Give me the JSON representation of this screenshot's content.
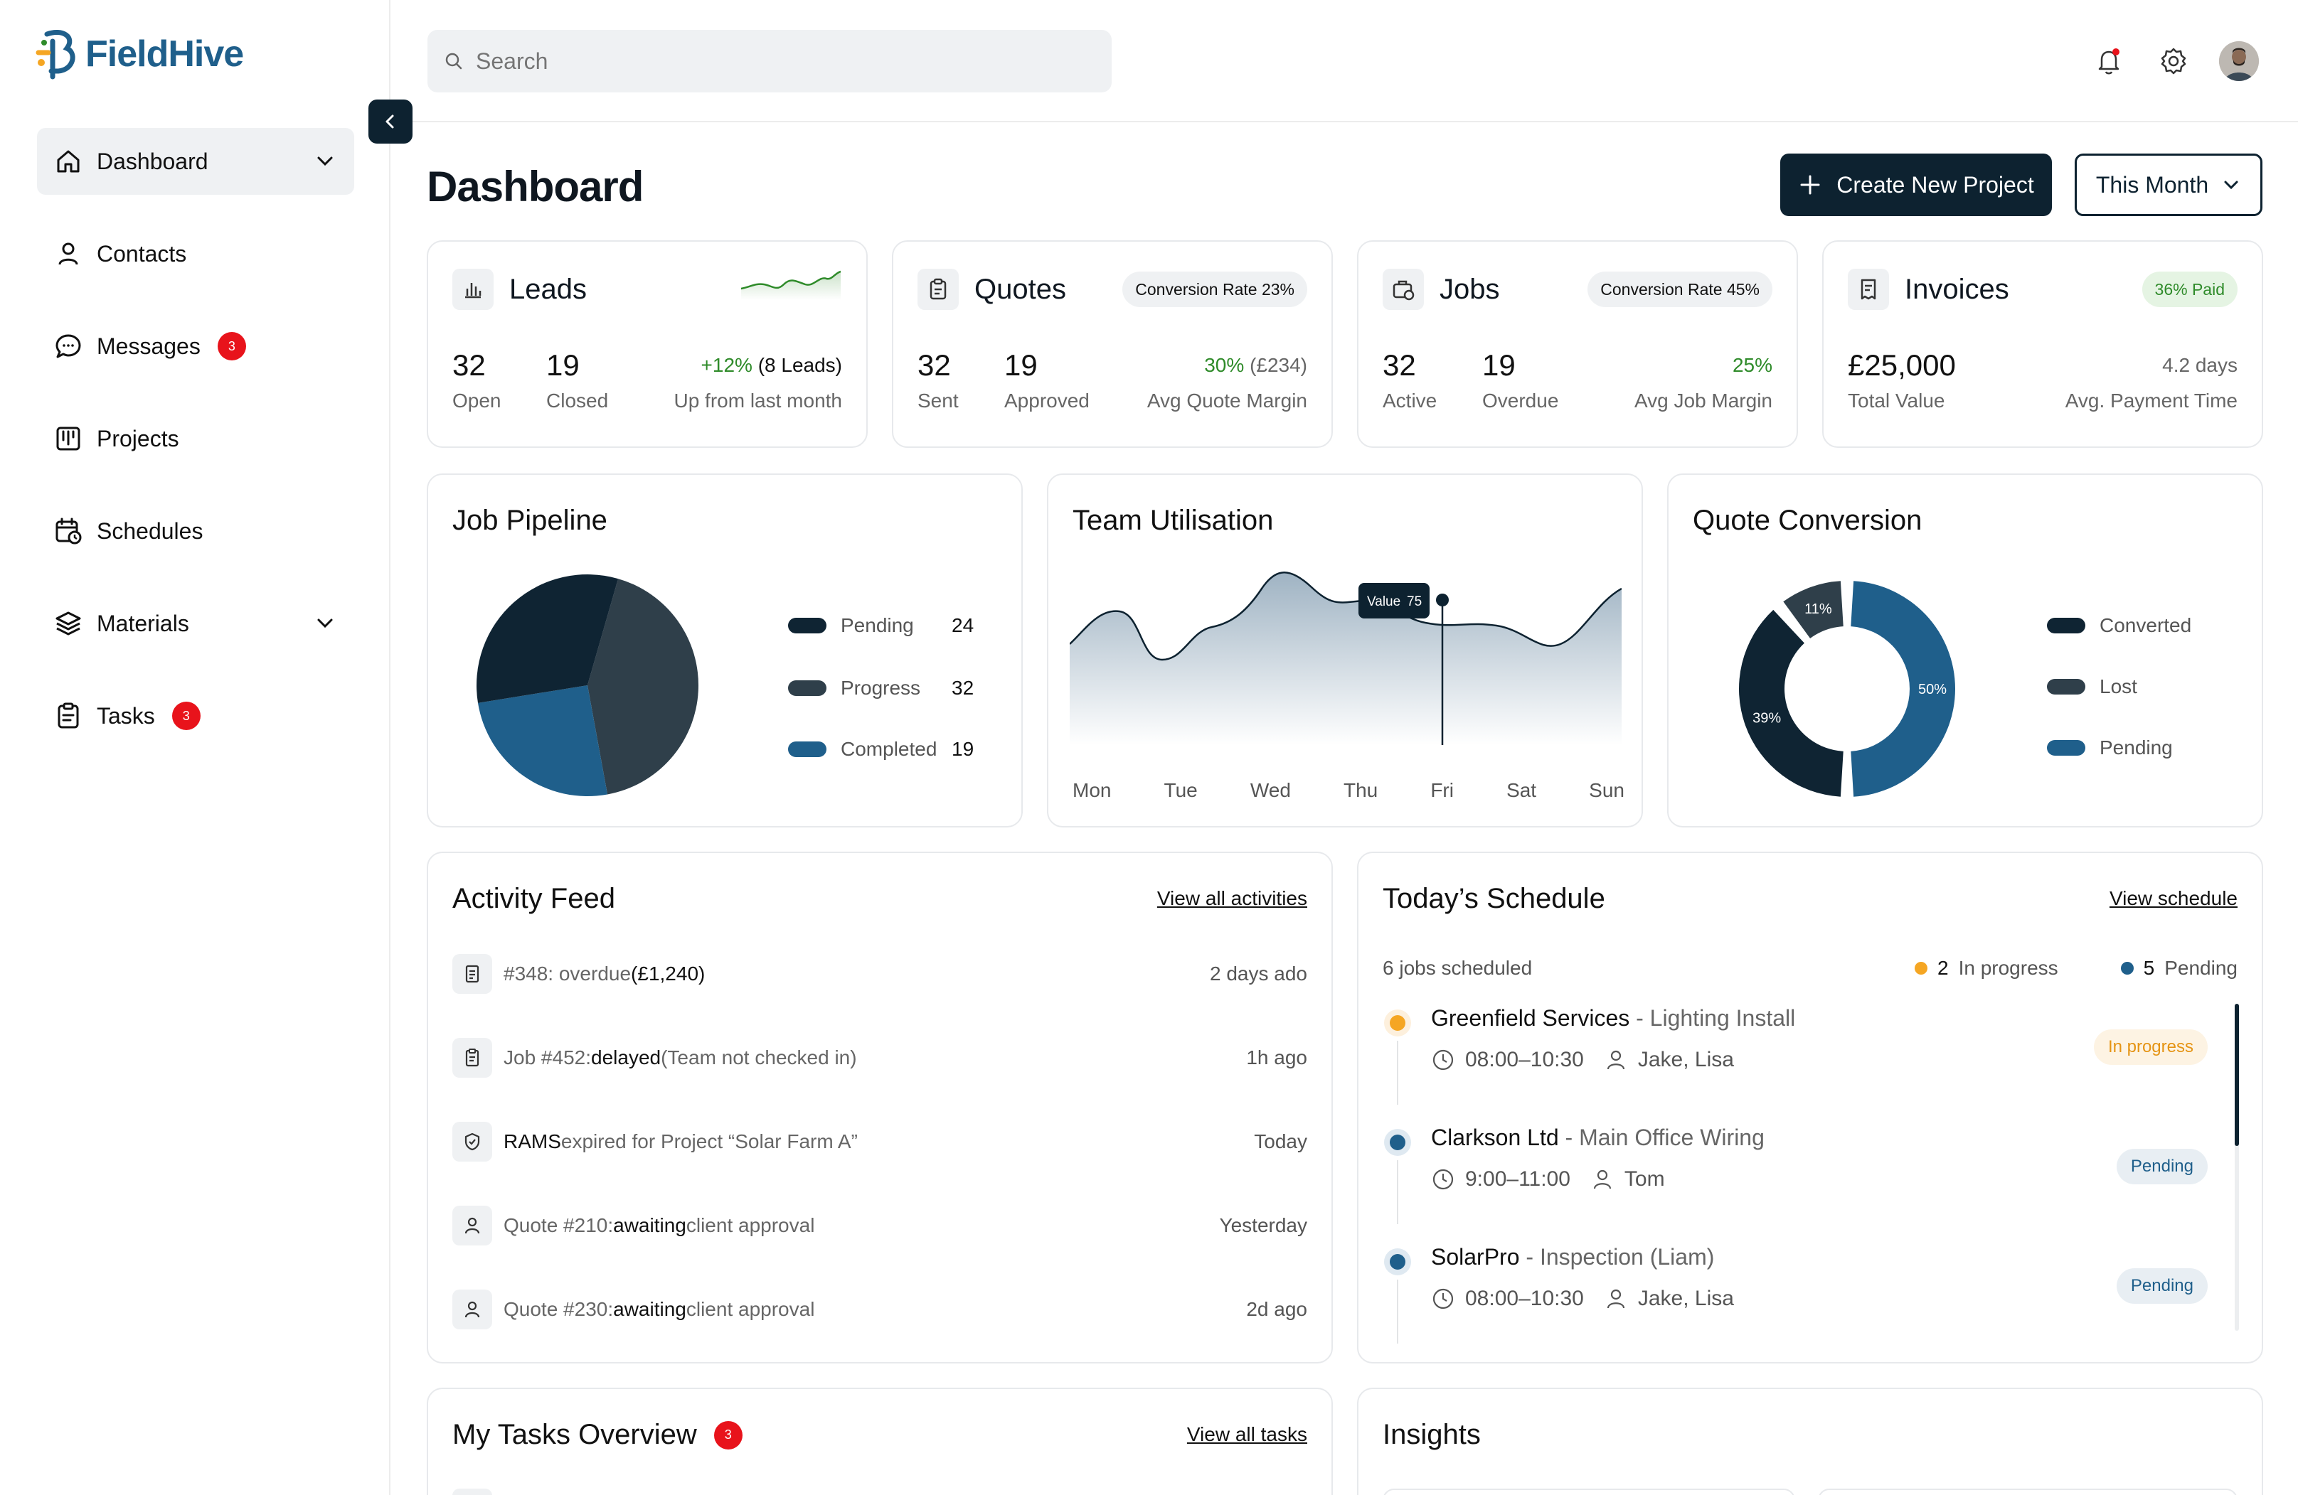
{
  "brand": {
    "name": "FieldHive"
  },
  "sidebar": {
    "items": [
      {
        "label": "Dashboard"
      },
      {
        "label": "Contacts"
      },
      {
        "label": "Messages",
        "badge": "3"
      },
      {
        "label": "Projects"
      },
      {
        "label": "Schedules"
      },
      {
        "label": "Materials"
      },
      {
        "label": "Tasks",
        "badge": "3"
      }
    ]
  },
  "topbar": {
    "search_placeholder": "Search"
  },
  "header": {
    "title": "Dashboard",
    "create_label": "Create New Project",
    "period_label": "This Month"
  },
  "stats": {
    "leads": {
      "title": "Leads",
      "open": "32",
      "open_label": "Open",
      "closed": "19",
      "closed_label": "Closed",
      "change": "+12%",
      "change_note": "(8 Leads)",
      "change_label": "Up from last month"
    },
    "quotes": {
      "title": "Quotes",
      "pill": "Conversion Rate 23%",
      "sent": "32",
      "sent_label": "Sent",
      "approved": "19",
      "approved_label": "Approved",
      "margin": "30%",
      "margin_note": "(£234)",
      "margin_label": "Avg Quote Margin"
    },
    "jobs": {
      "title": "Jobs",
      "pill": "Conversion Rate 45%",
      "active": "32",
      "active_label": "Active",
      "overdue": "19",
      "overdue_label": "Overdue",
      "margin": "25%",
      "margin_label": "Avg Job Margin"
    },
    "invoices": {
      "title": "Invoices",
      "pill": "36% Paid",
      "total": "£25,000",
      "total_label": "Total Value",
      "days": "4.2 days",
      "days_label": "Avg. Payment Time"
    }
  },
  "pipeline": {
    "title": "Job Pipeline",
    "legend": [
      {
        "label": "Pending",
        "value": "24"
      },
      {
        "label": "Progress",
        "value": "32"
      },
      {
        "label": "Completed",
        "value": "19"
      }
    ]
  },
  "utilisation": {
    "title": "Team Utilisation",
    "tooltip_label": "Value",
    "tooltip_value": "75",
    "days": [
      "Mon",
      "Tue",
      "Wed",
      "Thu",
      "Fri",
      "Sat",
      "Sun"
    ]
  },
  "conversion": {
    "title": "Quote Conversion",
    "labels": {
      "lost": "11%",
      "converted": "39%",
      "pending": "50%"
    },
    "legend": [
      {
        "label": "Converted"
      },
      {
        "label": "Lost"
      },
      {
        "label": "Pending"
      }
    ]
  },
  "chart_data": [
    {
      "type": "pie",
      "title": "Job Pipeline",
      "categories": [
        "Pending",
        "Progress",
        "Completed"
      ],
      "values": [
        24,
        32,
        19
      ],
      "colors": [
        "#0f2433",
        "#2f3f4a",
        "#1f5f8b"
      ]
    },
    {
      "type": "area",
      "title": "Team Utilisation",
      "categories": [
        "Mon",
        "Tue",
        "Wed",
        "Thu",
        "Fri",
        "Sat",
        "Sun"
      ],
      "values": [
        62,
        55,
        66,
        80,
        75,
        68,
        78
      ],
      "highlight": {
        "category": "Fri",
        "value": 75
      }
    },
    {
      "type": "pie",
      "title": "Quote Conversion",
      "categories": [
        "Lost",
        "Converted",
        "Pending"
      ],
      "values": [
        11,
        39,
        50
      ],
      "colors": [
        "#2f3f4a",
        "#0f2433",
        "#1f5f8b"
      ]
    }
  ],
  "activity": {
    "title": "Activity Feed",
    "view_all": "View all activities",
    "rows": [
      {
        "pre": "#348: overdue ",
        "strong": "(£1,240)",
        "post": "",
        "time": "2 days ado"
      },
      {
        "pre": "Job #452: ",
        "strong": "delayed",
        "post": " (Team not checked in)",
        "time": "1h ago"
      },
      {
        "pre": "",
        "strong": "RAMS",
        "post": " expired for Project “Solar Farm A”",
        "time": "Today"
      },
      {
        "pre": "Quote #210: ",
        "strong": "awaiting",
        "post": " client approval",
        "time": "Yesterday"
      },
      {
        "pre": "Quote #230: ",
        "strong": "awaiting",
        "post": " client approval",
        "time": "2d ago"
      }
    ]
  },
  "schedule": {
    "title": "Today’s Schedule",
    "view_all": "View schedule",
    "summary": "6 jobs scheduled",
    "in_progress_count": "2",
    "in_progress_label": "In progress",
    "pending_count": "5",
    "pending_label": "Pending",
    "items": [
      {
        "client": "Greenfield Services",
        "job": " - Lighting Install",
        "time": "08:00–10:30",
        "team": "Jake, Lisa",
        "status": "In progress"
      },
      {
        "client": "Clarkson Ltd",
        "job": " - Main Office Wiring",
        "time": "9:00–11:00",
        "team": "Tom",
        "status": "Pending"
      },
      {
        "client": "SolarPro",
        "job": " - Inspection (Liam)",
        "time": "08:00–10:30",
        "team": "Jake, Lisa",
        "status": "Pending"
      }
    ]
  },
  "tasks": {
    "title": "My Tasks Overview",
    "badge": "3",
    "view_all": "View all tasks"
  },
  "insights": {
    "title": "Insights"
  }
}
